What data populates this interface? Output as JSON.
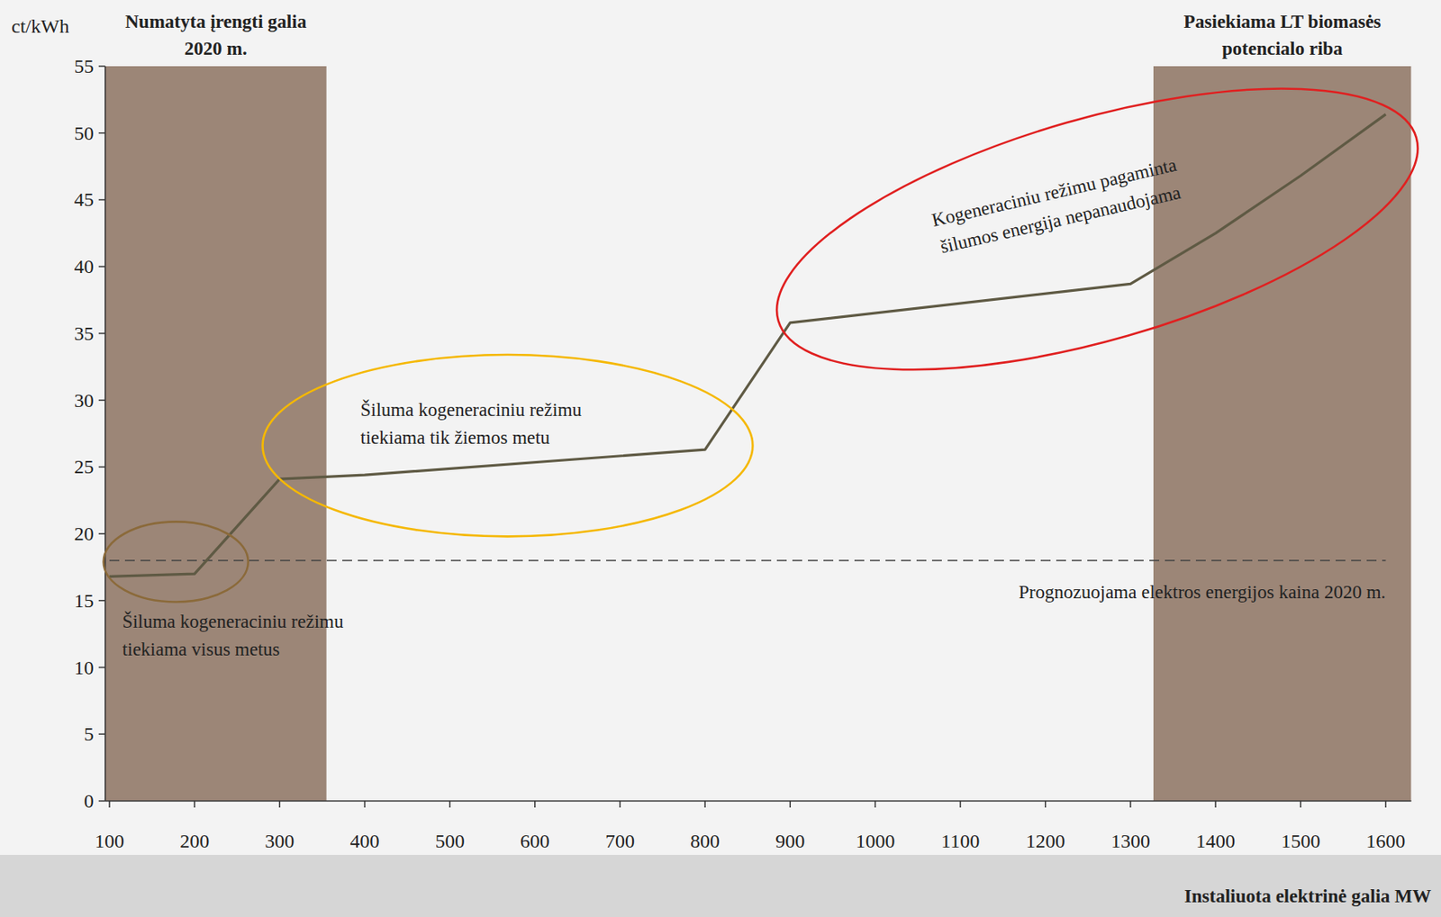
{
  "chart_data": {
    "type": "line",
    "y_label": "ct/kWh",
    "x_label": "Instaliuota elektrinė galia MW",
    "x": [
      100,
      200,
      300,
      400,
      800,
      900,
      1300,
      1400,
      1500,
      1600
    ],
    "series": [
      {
        "color": "#5f5a44",
        "values": [
          16.8,
          17.0,
          24.1,
          24.4,
          26.3,
          35.8,
          38.7,
          42.5,
          46.8,
          51.4
        ]
      }
    ],
    "xlim": [
      95,
      1630
    ],
    "ylim": [
      0,
      55
    ],
    "xticks": [
      100,
      200,
      300,
      400,
      500,
      600,
      700,
      800,
      900,
      1000,
      1100,
      1200,
      1300,
      1400,
      1500,
      1600
    ],
    "yticks": [
      0,
      5,
      10,
      15,
      20,
      25,
      30,
      35,
      40,
      45,
      50,
      55
    ],
    "grid": false,
    "bands": [
      {
        "x": [
          95,
          355
        ],
        "color": "#9c8677",
        "label": [
          "Numatyta įrengti galia",
          "2020 m."
        ]
      },
      {
        "x": [
          1327,
          1630
        ],
        "color": "#9c8677",
        "label": [
          "Pasiekiama LT biomasės",
          "potencialo riba"
        ]
      }
    ],
    "reference_lines": [
      {
        "value": 18,
        "label": "Prognozuojama elektros energijos kaina 2020 m.",
        "line_style": "dashed",
        "color": "#444444"
      }
    ],
    "annotations": [
      {
        "text": [
          "Šiluma kogeneraciniu režimu",
          "tiekiama visus metus"
        ],
        "color": "#8b6a3a",
        "x": 115,
        "y": 13.0,
        "ellipse": {
          "cx": 178,
          "cy": 17.9,
          "rx": 85,
          "ry": 3.0
        }
      },
      {
        "text": [
          "Šiluma kogeneraciniu režimu",
          "tiekiama tik žiemos metu"
        ],
        "color": "#f5b800",
        "x": 395,
        "y": 28.8,
        "ellipse": {
          "cx": 568,
          "cy": 26.6,
          "rx": 288,
          "ry": 6.8
        }
      },
      {
        "text": [
          "Kogeneraciniu režimu pagaminta",
          "šilumos energija nepanaudojama"
        ],
        "color": "#e02020",
        "x": 1212,
        "y": 45.1,
        "ellipse": {
          "cx": 1261,
          "cy": 42.8,
          "rx": 390,
          "ry": 8.3
        }
      }
    ]
  }
}
